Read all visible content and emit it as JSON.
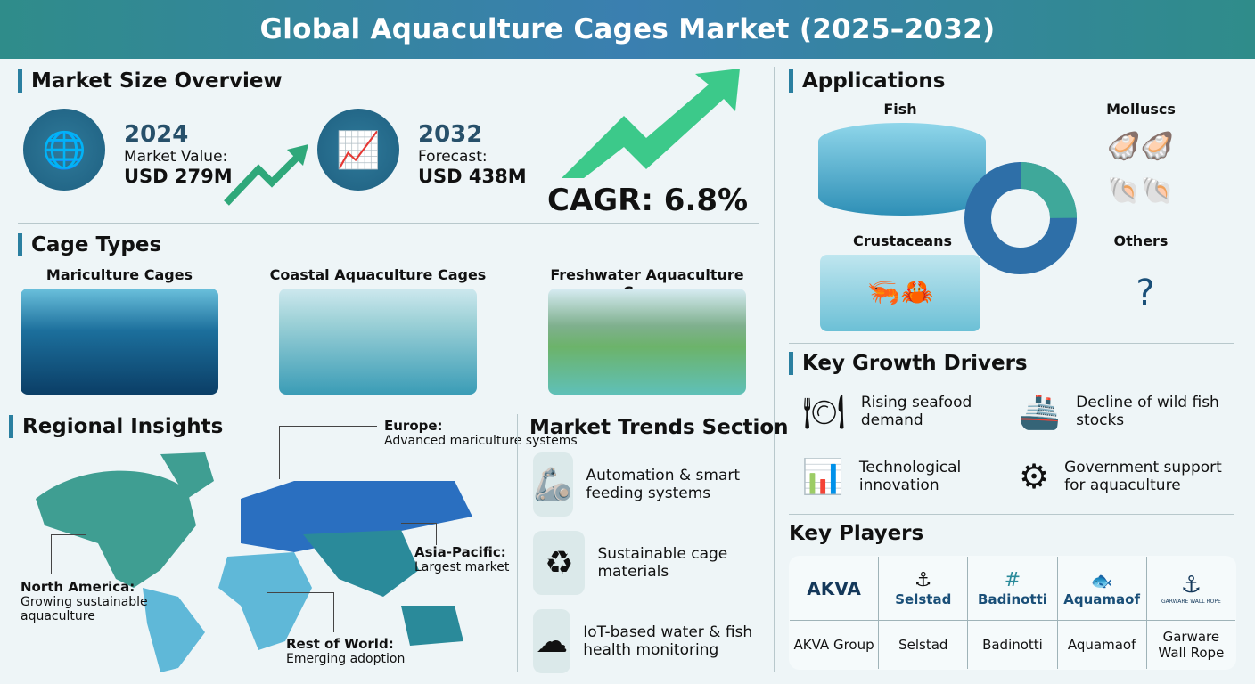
{
  "title": "Global Aquaculture Cages Market (2025–2032)",
  "market_size": {
    "heading": "Market Size Overview",
    "current": {
      "year": "2024",
      "label": "Market Value:",
      "value": "USD 279M",
      "icon": "globe-coins-icon"
    },
    "forecast": {
      "year": "2032",
      "label": "Forecast:",
      "value": "USD 438M",
      "icon": "bar-chart-growth-icon"
    },
    "cagr": "CAGR: 6.8%"
  },
  "cage_types": {
    "heading": "Cage Types",
    "items": [
      {
        "label": "Mariculture Cages"
      },
      {
        "label": "Coastal Aquaculture Cages"
      },
      {
        "label": "Freshwater Aquaculture Cages"
      }
    ]
  },
  "regional": {
    "heading": "Regional Insights",
    "regions": [
      {
        "name": "Europe:",
        "desc": "Advanced mariculture systems"
      },
      {
        "name": "Asia-Pacific:",
        "desc": "Largest market"
      },
      {
        "name": "North America:",
        "desc": "Growing sustainable aquaculture"
      },
      {
        "name": "Rest of World:",
        "desc": "Emerging adoption"
      }
    ],
    "colors": {
      "north_america": "#3f9e92",
      "europe": "#2a6fc0",
      "asia_pacific": "#2a8a9a",
      "rest_of_world": "#5fb8d8"
    }
  },
  "trends": {
    "heading": "Market Trends Section",
    "items": [
      {
        "label": "Automation & smart feeding systems",
        "icon": "robot-arm-icon"
      },
      {
        "label": "Sustainable cage materials",
        "icon": "recycle-leaf-icon"
      },
      {
        "label": "IoT-based water & fish health monitoring",
        "icon": "iot-cloud-sensor-icon"
      }
    ]
  },
  "applications": {
    "heading": "Applications",
    "items": [
      {
        "label": "Fish"
      },
      {
        "label": "Molluscs"
      },
      {
        "label": "Crustaceans"
      },
      {
        "label": "Others"
      }
    ]
  },
  "drivers": {
    "heading": "Key Growth Drivers",
    "items": [
      {
        "label": "Rising seafood demand",
        "icon": "seafood-plate-icon"
      },
      {
        "label": "Decline of wild fish stocks",
        "icon": "fishing-boat-decline-icon"
      },
      {
        "label": "Technological innovation",
        "icon": "tablet-chart-icon"
      },
      {
        "label": "Government support for aquaculture",
        "icon": "gear-hand-plant-icon"
      }
    ]
  },
  "key_players": {
    "heading": "Key Players",
    "players": [
      {
        "logo": "AKVA",
        "name": "AKVA Group"
      },
      {
        "logo": "Selstad",
        "name": "Selstad"
      },
      {
        "logo": "Badinotti",
        "name": "Badinotti"
      },
      {
        "logo": "Aquamaof",
        "name": "Aquamaof"
      },
      {
        "logo": "GARWARE WALL ROPE",
        "name": "Garware Wall Rope"
      }
    ]
  }
}
